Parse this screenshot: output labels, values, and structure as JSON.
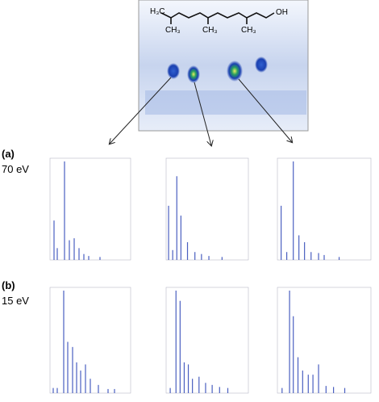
{
  "structure": {
    "labels": [
      "H₃C",
      "CH₃",
      "CH₃",
      "CH₃",
      "OH"
    ]
  },
  "panels": [
    {
      "label": "(a)",
      "energy": "70 eV",
      "spectra": [
        {
          "peaks": [
            [
              0.05,
              40
            ],
            [
              0.09,
              12
            ],
            [
              0.18,
              100
            ],
            [
              0.24,
              20
            ],
            [
              0.3,
              22
            ],
            [
              0.36,
              12
            ],
            [
              0.42,
              6
            ],
            [
              0.48,
              4
            ],
            [
              0.62,
              3
            ]
          ]
        },
        {
          "peaks": [
            [
              0.03,
              55
            ],
            [
              0.08,
              10
            ],
            [
              0.13,
              85
            ],
            [
              0.18,
              45
            ],
            [
              0.26,
              18
            ],
            [
              0.35,
              8
            ],
            [
              0.43,
              6
            ],
            [
              0.52,
              4
            ],
            [
              0.68,
              3
            ]
          ]
        },
        {
          "peaks": [
            [
              0.04,
              55
            ],
            [
              0.1,
              8
            ],
            [
              0.17,
              100
            ],
            [
              0.23,
              25
            ],
            [
              0.29,
              18
            ],
            [
              0.36,
              8
            ],
            [
              0.44,
              7
            ],
            [
              0.5,
              5
            ],
            [
              0.66,
              3
            ]
          ]
        }
      ]
    },
    {
      "label": "(b)",
      "energy": "15 eV",
      "spectra": [
        {
          "peaks": [
            [
              0.04,
              5
            ],
            [
              0.09,
              5
            ],
            [
              0.17,
              100
            ],
            [
              0.22,
              50
            ],
            [
              0.28,
              45
            ],
            [
              0.33,
              30
            ],
            [
              0.38,
              22
            ],
            [
              0.44,
              28
            ],
            [
              0.5,
              14
            ],
            [
              0.6,
              8
            ],
            [
              0.72,
              4
            ],
            [
              0.8,
              4
            ]
          ]
        },
        {
          "peaks": [
            [
              0.05,
              5
            ],
            [
              0.12,
              100
            ],
            [
              0.17,
              90
            ],
            [
              0.22,
              30
            ],
            [
              0.27,
              28
            ],
            [
              0.32,
              14
            ],
            [
              0.4,
              16
            ],
            [
              0.48,
              10
            ],
            [
              0.56,
              8
            ],
            [
              0.65,
              6
            ],
            [
              0.75,
              5
            ]
          ]
        },
        {
          "peaks": [
            [
              0.05,
              5
            ],
            [
              0.13,
              100
            ],
            [
              0.17,
              75
            ],
            [
              0.22,
              35
            ],
            [
              0.27,
              22
            ],
            [
              0.33,
              18
            ],
            [
              0.38,
              18
            ],
            [
              0.44,
              28
            ],
            [
              0.52,
              7
            ],
            [
              0.6,
              6
            ],
            [
              0.72,
              5
            ]
          ]
        }
      ]
    }
  ]
}
